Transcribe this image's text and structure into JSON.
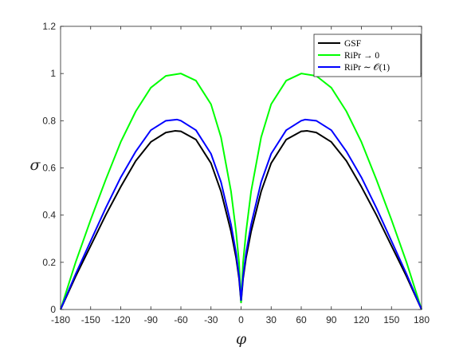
{
  "chart_data": {
    "type": "line",
    "title": "",
    "xlabel": "φ",
    "ylabel": "σ",
    "xlim": [
      -180,
      180
    ],
    "ylim": [
      0,
      1.2
    ],
    "xticks": [
      -180,
      -150,
      -120,
      -90,
      -60,
      -30,
      0,
      30,
      60,
      90,
      120,
      150,
      180
    ],
    "xtick_labels": [
      "-180",
      "-150",
      "-120",
      "-90",
      "-60",
      "-30",
      "0",
      "30",
      "60",
      "90",
      "120",
      "150",
      "180"
    ],
    "yticks": [
      0,
      0.2,
      0.4,
      0.6,
      0.8,
      1,
      1.2
    ],
    "ytick_labels": [
      "0",
      "0.2",
      "0.4",
      "0.6",
      "0.8",
      "1",
      "1.2"
    ],
    "grid": false,
    "legend_position": "top-right",
    "series": [
      {
        "name": "GSF",
        "color": "#000000",
        "x": [
          -180,
          -165,
          -150,
          -135,
          -120,
          -105,
          -90,
          -75,
          -66,
          -60,
          -45,
          -30,
          -20,
          -10,
          -5,
          -2,
          0,
          2,
          5,
          10,
          20,
          30,
          45,
          60,
          66,
          75,
          90,
          105,
          120,
          135,
          150,
          165,
          180
        ],
        "y": [
          0,
          0.14,
          0.27,
          0.4,
          0.52,
          0.63,
          0.71,
          0.75,
          0.757,
          0.755,
          0.72,
          0.62,
          0.5,
          0.33,
          0.22,
          0.13,
          0.03,
          0.13,
          0.22,
          0.33,
          0.5,
          0.62,
          0.72,
          0.755,
          0.757,
          0.75,
          0.71,
          0.63,
          0.52,
          0.4,
          0.27,
          0.14,
          0
        ]
      },
      {
        "name": "RiPr → 0",
        "color": "#00ff00",
        "x": [
          -180,
          -165,
          -150,
          -135,
          -120,
          -105,
          -90,
          -75,
          -60,
          -45,
          -30,
          -20,
          -10,
          -5,
          -2,
          0,
          2,
          5,
          10,
          20,
          30,
          45,
          60,
          75,
          90,
          105,
          120,
          135,
          150,
          165,
          180
        ],
        "y": [
          0,
          0.2,
          0.38,
          0.55,
          0.71,
          0.84,
          0.94,
          0.99,
          1.0,
          0.97,
          0.87,
          0.73,
          0.5,
          0.33,
          0.2,
          0.03,
          0.2,
          0.33,
          0.5,
          0.73,
          0.87,
          0.97,
          1.0,
          0.99,
          0.94,
          0.84,
          0.71,
          0.55,
          0.38,
          0.2,
          0
        ]
      },
      {
        "name": "RiPr ∼ 𝒪(1)",
        "color": "#0000ff",
        "x": [
          -180,
          -165,
          -150,
          -135,
          -120,
          -105,
          -90,
          -75,
          -64,
          -60,
          -45,
          -30,
          -20,
          -10,
          -5,
          -2,
          0,
          2,
          5,
          10,
          20,
          30,
          45,
          60,
          64,
          75,
          90,
          105,
          120,
          135,
          150,
          165,
          180
        ],
        "y": [
          0,
          0.15,
          0.29,
          0.43,
          0.56,
          0.67,
          0.76,
          0.8,
          0.805,
          0.8,
          0.76,
          0.66,
          0.54,
          0.36,
          0.24,
          0.14,
          0.04,
          0.14,
          0.24,
          0.36,
          0.54,
          0.66,
          0.76,
          0.8,
          0.805,
          0.8,
          0.76,
          0.67,
          0.56,
          0.43,
          0.29,
          0.15,
          0
        ]
      }
    ]
  }
}
